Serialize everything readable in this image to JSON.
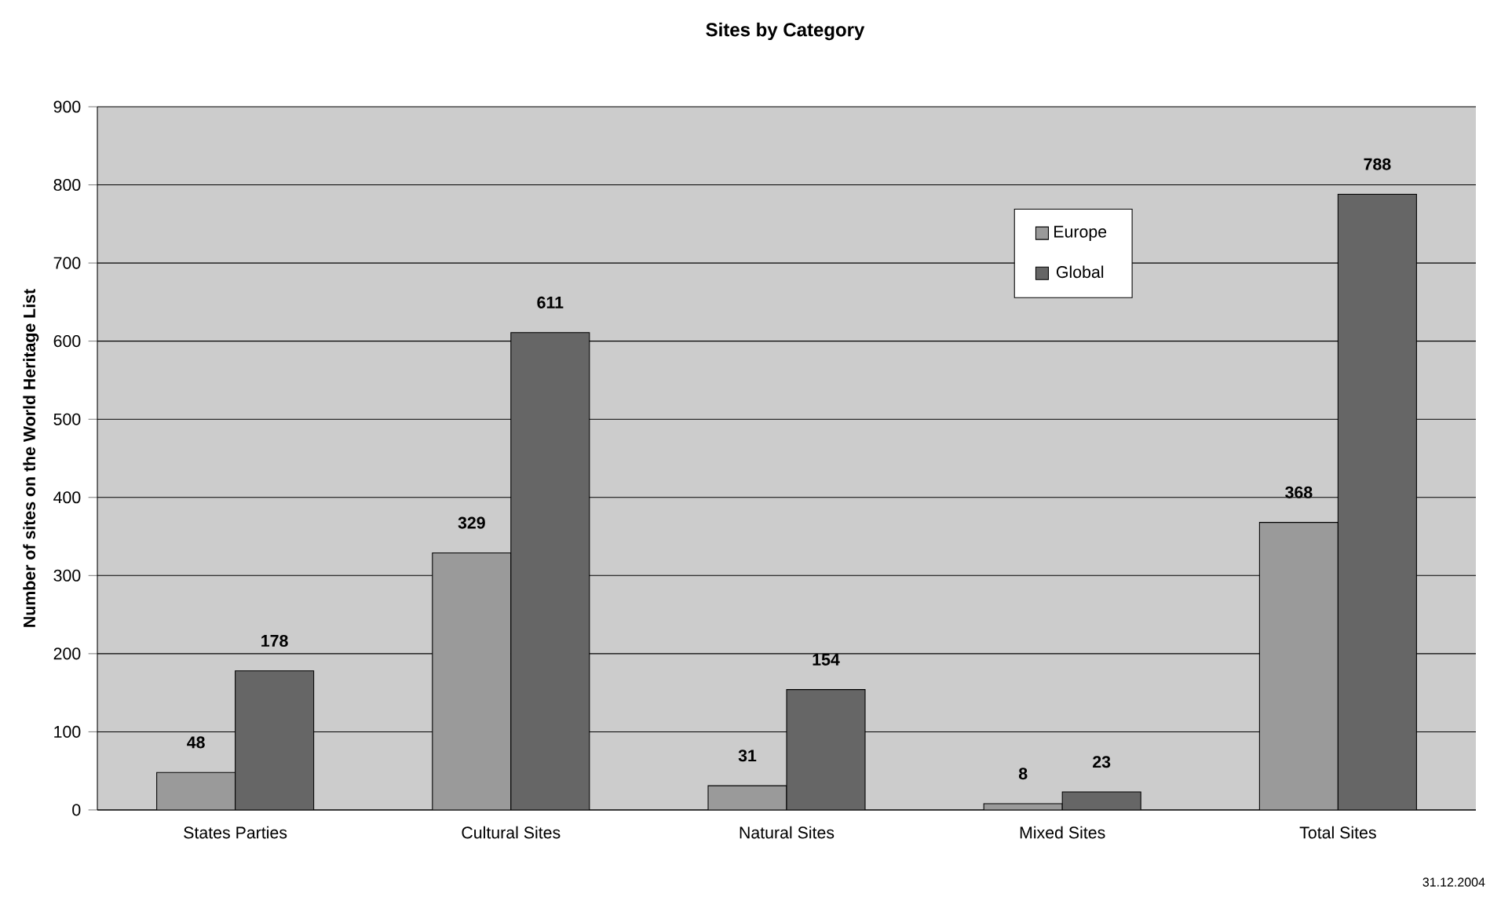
{
  "chart_data": {
    "type": "bar",
    "title": "Sites by Category",
    "ylabel": "Number of sites on the World Heritage List",
    "categories": [
      "States Parties",
      "Cultural Sites",
      "Natural Sites",
      "Mixed Sites",
      "Total Sites"
    ],
    "series": [
      {
        "name": "Europe",
        "color": "#9a9a9a",
        "values": [
          48,
          329,
          31,
          8,
          368
        ]
      },
      {
        "name": "Global",
        "color": "#666666",
        "values": [
          178,
          611,
          154,
          23,
          788
        ]
      }
    ],
    "ylim": [
      0,
      900
    ],
    "yticks": [
      0,
      100,
      200,
      300,
      400,
      500,
      600,
      700,
      800,
      900
    ],
    "grid": "y",
    "legend": "top right",
    "data_labels": true,
    "annotations": [
      "31.12.2004"
    ]
  }
}
